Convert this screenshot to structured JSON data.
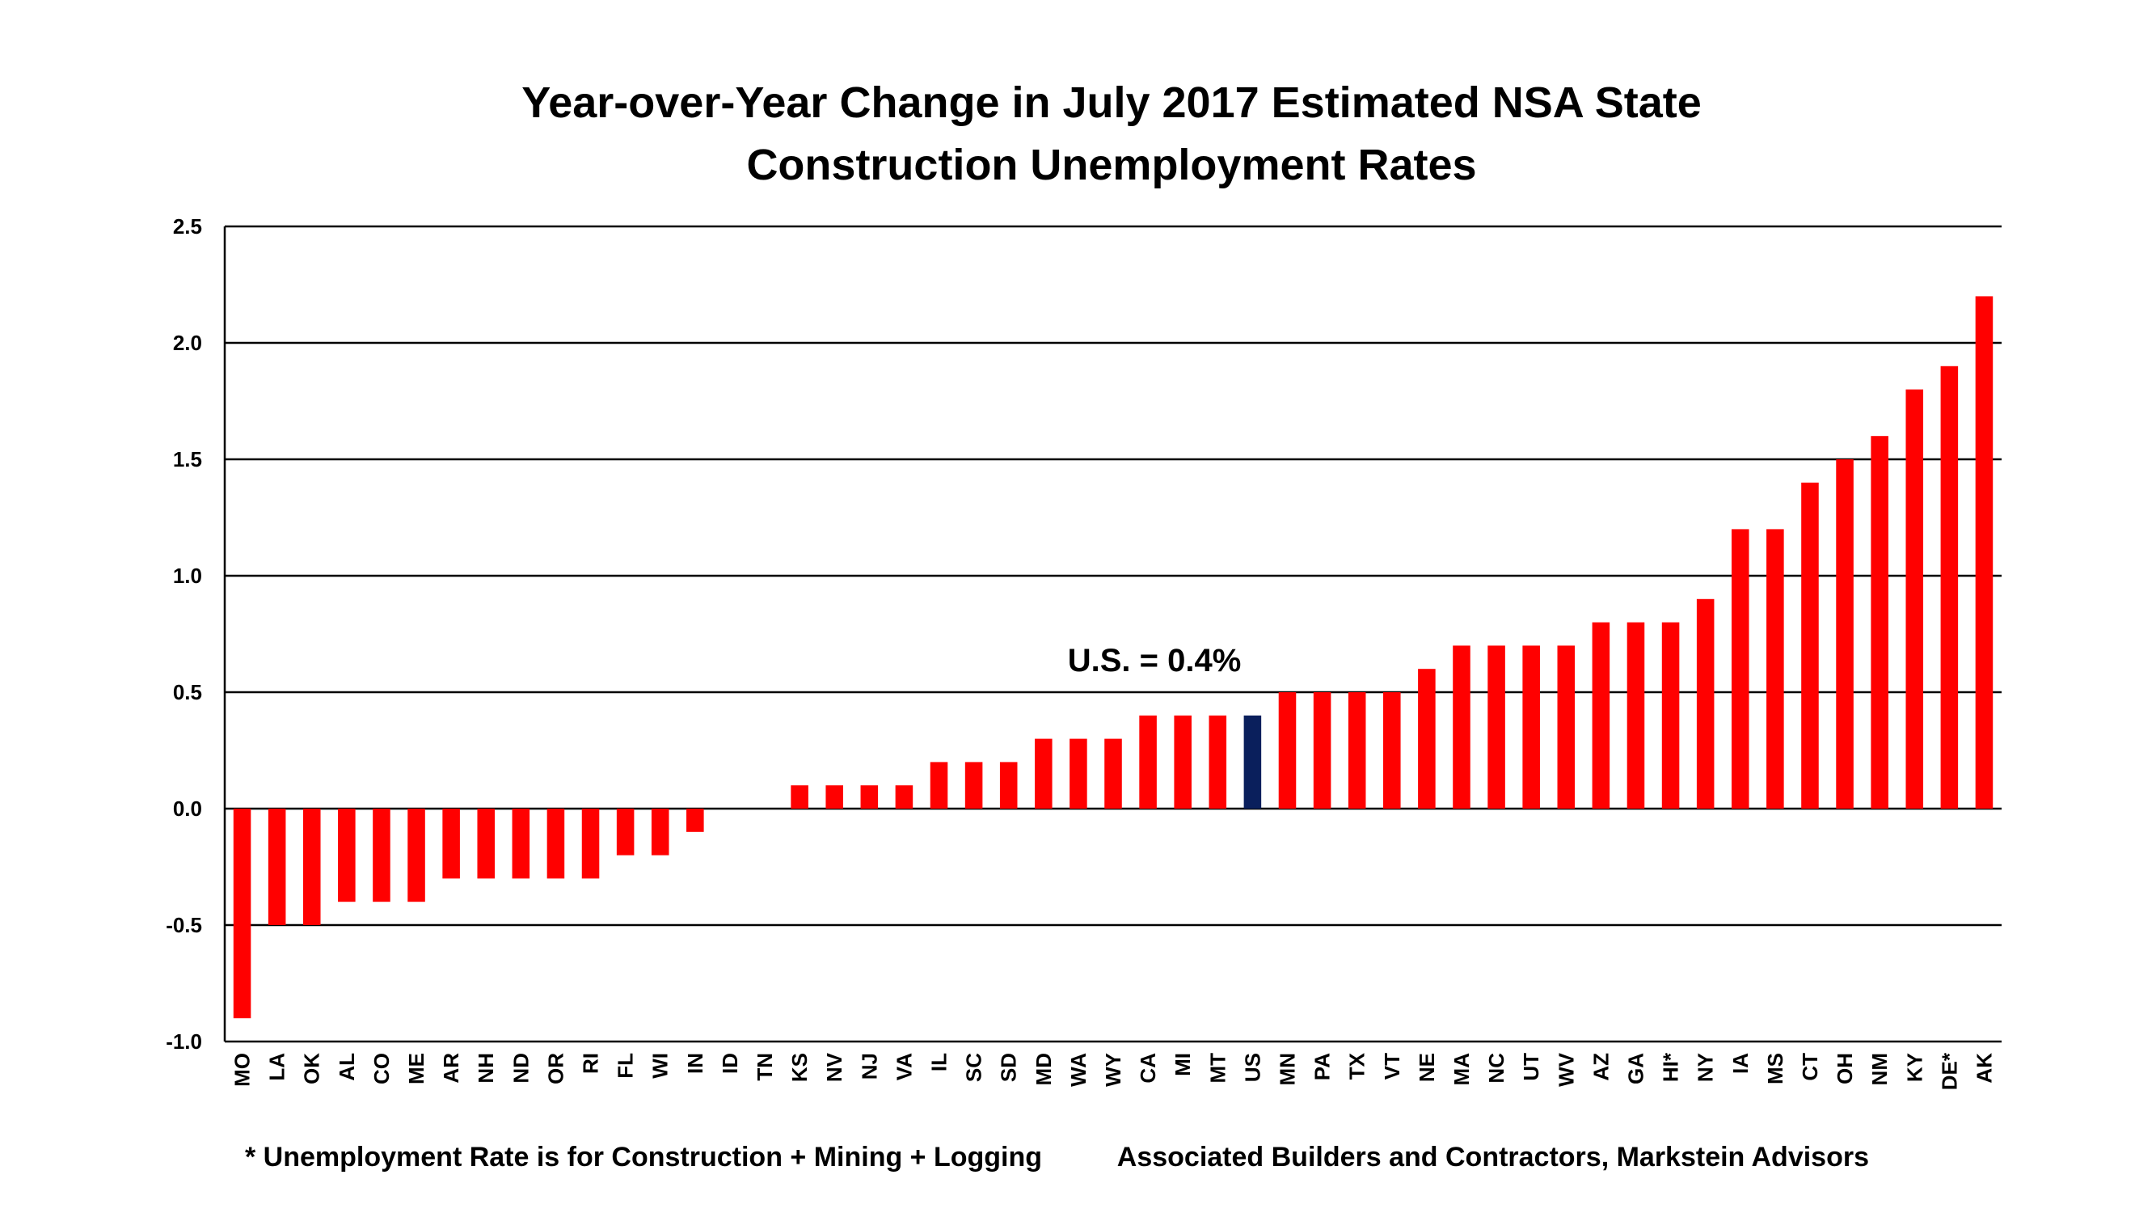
{
  "chart_data": {
    "type": "bar",
    "title_lines": [
      "Year-over-Year Change in July 2017 Estimated NSA State",
      "Construction Unemployment Rates"
    ],
    "xlabel": "",
    "ylabel": "",
    "ylim": [
      -1.0,
      2.5
    ],
    "yticks": [
      "2.5",
      "2.0",
      "1.5",
      "1.0",
      "0.5",
      "0.0",
      "-0.5",
      "-1.0"
    ],
    "ytick_values": [
      2.5,
      2.0,
      1.5,
      1.0,
      0.5,
      0.0,
      -0.5,
      -1.0
    ],
    "grid": true,
    "categories": [
      "MO",
      "LA",
      "OK",
      "AL",
      "CO",
      "ME",
      "AR",
      "NH",
      "ND",
      "OR",
      "RI",
      "FL",
      "WI",
      "IN",
      "ID",
      "TN",
      "KS",
      "NV",
      "NJ",
      "VA",
      "IL",
      "SC",
      "SD",
      "MD",
      "WA",
      "WY",
      "CA",
      "MI",
      "MT",
      "US",
      "MN",
      "PA",
      "TX",
      "VT",
      "NE",
      "MA",
      "NC",
      "UT",
      "WV",
      "AZ",
      "GA",
      "HI*",
      "NY",
      "IA",
      "MS",
      "CT",
      "OH",
      "NM",
      "KY",
      "DE*",
      "AK"
    ],
    "values": [
      -0.9,
      -0.5,
      -0.5,
      -0.4,
      -0.4,
      -0.4,
      -0.3,
      -0.3,
      -0.3,
      -0.3,
      -0.3,
      -0.2,
      -0.2,
      -0.1,
      0.0,
      0.0,
      0.1,
      0.1,
      0.1,
      0.1,
      0.2,
      0.2,
      0.2,
      0.3,
      0.3,
      0.3,
      0.4,
      0.4,
      0.4,
      0.4,
      0.5,
      0.5,
      0.5,
      0.5,
      0.6,
      0.7,
      0.7,
      0.7,
      0.7,
      0.8,
      0.8,
      0.8,
      0.9,
      1.2,
      1.2,
      1.4,
      1.5,
      1.6,
      1.8,
      1.9,
      2.2
    ],
    "highlight_category": "US",
    "colors": {
      "bar": "#ff0000",
      "highlight": "#0a1f5c",
      "grid": "#000000"
    },
    "annotation": "U.S. = 0.4%",
    "footnote_left": "* Unemployment Rate is for Construction + Mining + Logging",
    "footnote_right": "Associated Builders and Contractors, Markstein Advisors"
  }
}
